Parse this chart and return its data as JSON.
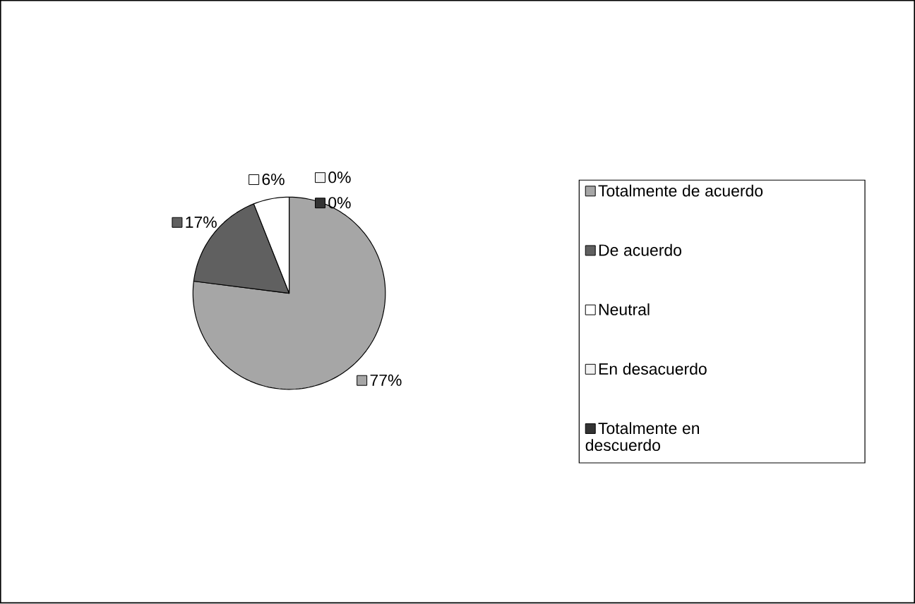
{
  "chart_data": {
    "type": "pie",
    "categories": [
      "Totalmente de acuerdo",
      "De acuerdo",
      "Neutral",
      "En desacuerdo",
      "Totalmente en descuerdo"
    ],
    "values": [
      77,
      17,
      6,
      0,
      0
    ],
    "value_labels": [
      "77%",
      "17%",
      "6%",
      "0%",
      "0%"
    ],
    "colors": [
      "#a6a6a6",
      "#606060",
      "#ffffff",
      "#f2f2f2",
      "#333333"
    ],
    "legend": "right"
  }
}
